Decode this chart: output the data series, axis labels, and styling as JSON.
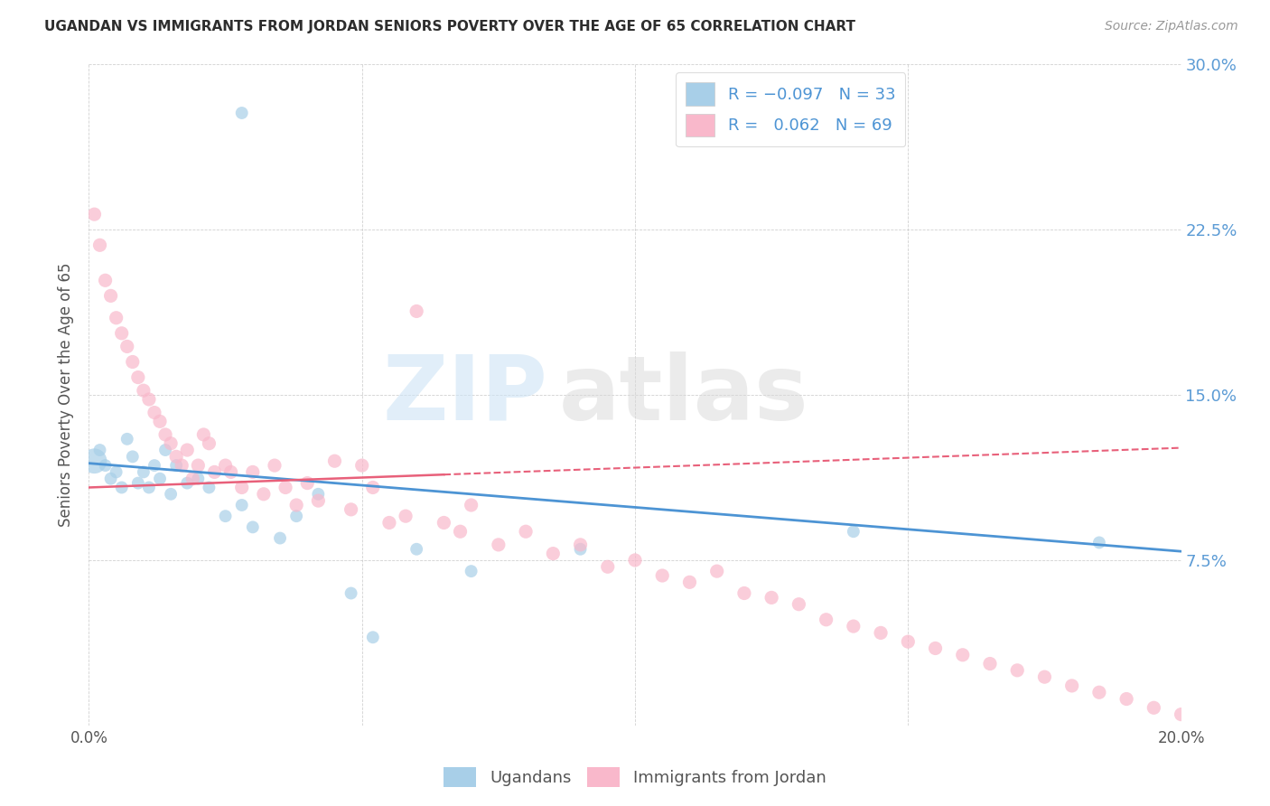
{
  "title": "UGANDAN VS IMMIGRANTS FROM JORDAN SENIORS POVERTY OVER THE AGE OF 65 CORRELATION CHART",
  "source": "Source: ZipAtlas.com",
  "ylabel": "Seniors Poverty Over the Age of 65",
  "xlim": [
    0.0,
    0.2
  ],
  "ylim": [
    0.0,
    0.3
  ],
  "yticks": [
    0.075,
    0.15,
    0.225,
    0.3
  ],
  "ytick_labels": [
    "7.5%",
    "15.0%",
    "22.5%",
    "30.0%"
  ],
  "xticks": [
    0.0,
    0.05,
    0.1,
    0.15,
    0.2
  ],
  "xtick_labels": [
    "0.0%",
    "",
    "",
    "",
    "20.0%"
  ],
  "watermark_zip": "ZIP",
  "watermark_atlas": "atlas",
  "ugandan_color": "#a8cfe8",
  "jordan_color": "#f9b8cb",
  "ugandan_line_color": "#4d94d4",
  "jordan_line_color": "#e8607a",
  "background_color": "#ffffff",
  "ug_line_y0": 0.119,
  "ug_line_y1": 0.079,
  "jo_line_y0": 0.108,
  "jo_line_y1": 0.126,
  "jo_line_solid_x": 0.065,
  "ugandan_x": [
    0.001,
    0.002,
    0.003,
    0.004,
    0.005,
    0.006,
    0.007,
    0.008,
    0.009,
    0.01,
    0.011,
    0.012,
    0.013,
    0.014,
    0.015,
    0.016,
    0.018,
    0.02,
    0.022,
    0.025,
    0.028,
    0.03,
    0.035,
    0.038,
    0.042,
    0.048,
    0.052,
    0.06,
    0.07,
    0.09,
    0.14,
    0.185,
    0.028
  ],
  "ugandan_y": [
    0.12,
    0.125,
    0.118,
    0.112,
    0.115,
    0.108,
    0.13,
    0.122,
    0.11,
    0.115,
    0.108,
    0.118,
    0.112,
    0.125,
    0.105,
    0.118,
    0.11,
    0.112,
    0.108,
    0.095,
    0.1,
    0.09,
    0.085,
    0.095,
    0.105,
    0.06,
    0.04,
    0.08,
    0.07,
    0.08,
    0.088,
    0.083,
    0.278
  ],
  "ugandan_sizes": [
    400,
    100,
    100,
    100,
    100,
    100,
    100,
    100,
    100,
    100,
    100,
    100,
    100,
    100,
    100,
    100,
    100,
    100,
    100,
    100,
    100,
    100,
    100,
    100,
    100,
    100,
    100,
    100,
    100,
    100,
    100,
    100,
    100
  ],
  "jordan_x": [
    0.001,
    0.002,
    0.003,
    0.004,
    0.005,
    0.006,
    0.007,
    0.008,
    0.009,
    0.01,
    0.011,
    0.012,
    0.013,
    0.014,
    0.015,
    0.016,
    0.017,
    0.018,
    0.019,
    0.02,
    0.021,
    0.022,
    0.023,
    0.025,
    0.026,
    0.028,
    0.03,
    0.032,
    0.034,
    0.036,
    0.038,
    0.04,
    0.042,
    0.045,
    0.048,
    0.05,
    0.052,
    0.055,
    0.058,
    0.06,
    0.065,
    0.068,
    0.07,
    0.075,
    0.08,
    0.085,
    0.09,
    0.095,
    0.1,
    0.105,
    0.11,
    0.115,
    0.12,
    0.125,
    0.13,
    0.135,
    0.14,
    0.145,
    0.15,
    0.155,
    0.16,
    0.165,
    0.17,
    0.175,
    0.18,
    0.185,
    0.19,
    0.195,
    0.2
  ],
  "jordan_y": [
    0.232,
    0.218,
    0.202,
    0.195,
    0.185,
    0.178,
    0.172,
    0.165,
    0.158,
    0.152,
    0.148,
    0.142,
    0.138,
    0.132,
    0.128,
    0.122,
    0.118,
    0.125,
    0.112,
    0.118,
    0.132,
    0.128,
    0.115,
    0.118,
    0.115,
    0.108,
    0.115,
    0.105,
    0.118,
    0.108,
    0.1,
    0.11,
    0.102,
    0.12,
    0.098,
    0.118,
    0.108,
    0.092,
    0.095,
    0.188,
    0.092,
    0.088,
    0.1,
    0.082,
    0.088,
    0.078,
    0.082,
    0.072,
    0.075,
    0.068,
    0.065,
    0.07,
    0.06,
    0.058,
    0.055,
    0.048,
    0.045,
    0.042,
    0.038,
    0.035,
    0.032,
    0.028,
    0.025,
    0.022,
    0.018,
    0.015,
    0.012,
    0.008,
    0.005
  ]
}
